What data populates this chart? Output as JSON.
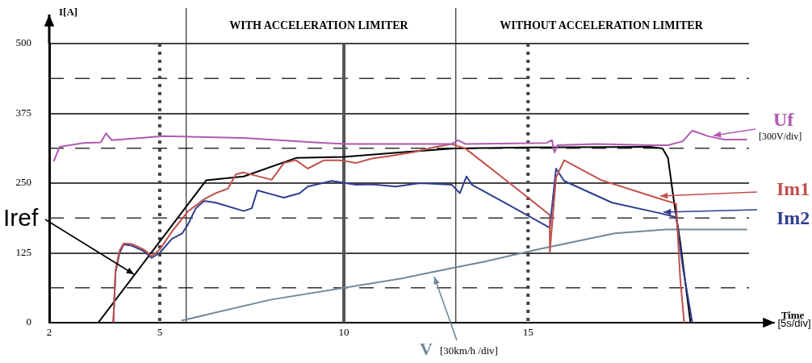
{
  "chart_data": {
    "type": "line",
    "xlabel": "Time [5s/div]",
    "ylabel": "I[A]",
    "xlim": [
      2,
      21
    ],
    "xticks": [
      2,
      5,
      10,
      15
    ],
    "ylim": [
      0,
      500
    ],
    "yticks": [
      0,
      125,
      250,
      375,
      500
    ],
    "grid": "y",
    "legend": "right",
    "marker": "none",
    "line_style": "solid",
    "series": [
      {
        "name": "Uf",
        "color": "#b05ab0",
        "x": [
          2.13,
          2.28,
          2.93,
          3.4,
          3.54,
          3.7,
          5.11,
          7.28,
          9.46,
          10.11,
          12.93,
          13.09,
          13.3,
          15.5,
          15.65,
          15.72,
          15.8,
          16.85,
          18.37,
          18.8,
          19.2,
          19.46,
          19.89,
          20.33,
          20.93
        ],
        "values": [
          290,
          315,
          322,
          323,
          339,
          327,
          334,
          331,
          322,
          320,
          320,
          327,
          320,
          322,
          327,
          305,
          318,
          320,
          318,
          318,
          325,
          344,
          334,
          328,
          328
        ]
      },
      {
        "name": "Im1",
        "color": "#c0504d",
        "x": [
          3.74,
          3.8,
          3.91,
          4.02,
          4.24,
          4.57,
          4.78,
          5.0,
          5.33,
          5.76,
          6.2,
          6.52,
          6.85,
          7.07,
          7.28,
          8.04,
          8.37,
          8.7,
          9.02,
          9.46,
          9.89,
          10.33,
          10.76,
          11.2,
          11.85,
          12.5,
          12.93,
          13.3,
          14.5,
          15.59,
          15.59,
          15.76,
          15.98,
          17.0,
          18.43,
          19.02,
          19.13,
          19.24
        ],
        "values": [
          0,
          94,
          129,
          142,
          141,
          131,
          119,
          131,
          163,
          199,
          221,
          232,
          240,
          266,
          269,
          256,
          286,
          291,
          276,
          291,
          291,
          286,
          294,
          298,
          305,
          315,
          320,
          312,
          250,
          193,
          126,
          260,
          291,
          255,
          225,
          213,
          80,
          0
        ]
      },
      {
        "name": "Im2",
        "color": "#2e3f8f",
        "x": [
          3.74,
          3.8,
          3.91,
          4.02,
          4.24,
          4.57,
          4.78,
          5.0,
          5.33,
          5.61,
          5.76,
          5.98,
          6.2,
          6.52,
          7.28,
          7.5,
          7.65,
          8.04,
          8.37,
          8.8,
          9.02,
          9.67,
          10.33,
          10.76,
          11.41,
          12.07,
          12.93,
          13.15,
          13.33,
          13.48,
          14.5,
          15.59,
          15.76,
          15.98,
          17.28,
          18.59,
          19.02,
          19.2,
          19.46
        ],
        "values": [
          0,
          90,
          125,
          140,
          138,
          128,
          116,
          125,
          150,
          160,
          175,
          205,
          218,
          215,
          200,
          205,
          237,
          230,
          224,
          232,
          244,
          254,
          247,
          248,
          244,
          250,
          247,
          232,
          262,
          247,
          210,
          170,
          276,
          254,
          215,
          196,
          189,
          100,
          0
        ]
      },
      {
        "name": "Iref",
        "color": "#000000",
        "x": [
          3.33,
          6.26,
          7.28,
          8.7,
          10.0,
          11.5,
          13.0,
          15.0,
          18.3,
          18.65,
          18.8,
          18.96,
          19.13,
          19.41
        ],
        "values": [
          0,
          255,
          262,
          295,
          297,
          305,
          312,
          314,
          315,
          312,
          295,
          218,
          145,
          0
        ]
      },
      {
        "name": "V",
        "color": "#6f8a99",
        "x": [
          5.61,
          8.0,
          11.63,
          12.35,
          13.8,
          15.26,
          17.35,
          18.74,
          20.93
        ],
        "values": [
          4,
          41,
          80,
          90,
          109,
          131,
          160,
          167,
          167
        ]
      }
    ],
    "ref_lines": [
      {
        "axis": "y",
        "value": 62.5,
        "color": "#333333",
        "line_style": "dashed"
      },
      {
        "axis": "y",
        "value": 187.5,
        "color": "#333333",
        "line_style": "dashed"
      },
      {
        "axis": "y",
        "value": 312.5,
        "color": "#333333",
        "line_style": "dashed"
      },
      {
        "axis": "y",
        "value": 437.5,
        "color": "#333333",
        "line_style": "dashed"
      },
      {
        "axis": "x",
        "value": 5,
        "color": "#444444",
        "line_style": "dotted"
      },
      {
        "axis": "x",
        "value": 10,
        "color": "#555555",
        "line_style": "solid"
      },
      {
        "axis": "x",
        "value": 15,
        "color": "#444444",
        "line_style": "dotted"
      },
      {
        "axis": "x",
        "value": 5.72,
        "color": "#000000",
        "line_style": "solid"
      },
      {
        "axis": "x",
        "value": 13.04,
        "color": "#000000",
        "line_style": "solid"
      }
    ],
    "annotations": [
      "[300V/div]",
      "[30km/h /div]",
      "WITH ACCELERATION LIMITER",
      "WITHOUT ACCELERATION LIMITER"
    ]
  }
}
